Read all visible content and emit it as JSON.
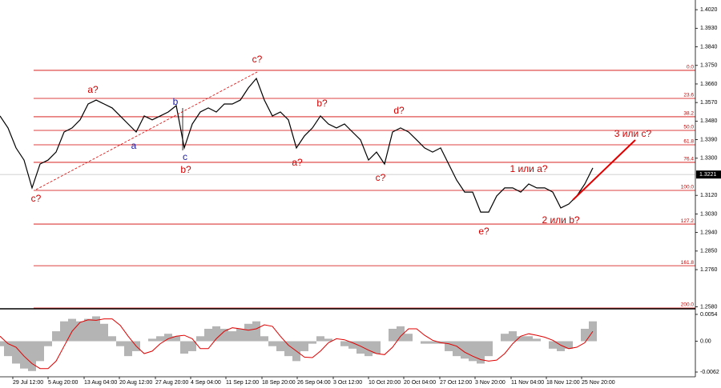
{
  "chart_data": [
    {
      "type": "line",
      "series": [
        {
          "color": "#000000",
          "values": [
            1.3505,
            1.3447,
            1.335,
            1.3291,
            1.3156,
            1.3272,
            1.3291,
            1.333,
            1.3427,
            1.3447,
            1.3486,
            1.3563,
            1.3582,
            1.3563,
            1.3544,
            1.3505,
            1.3466,
            1.3427,
            1.3505,
            1.3486,
            1.3505,
            1.3524,
            1.3555,
            1.335,
            1.3466,
            1.3524,
            1.3544,
            1.3524,
            1.3563,
            1.3563,
            1.3582,
            1.3641,
            1.3687,
            1.3582,
            1.3505,
            1.3524,
            1.3486,
            1.335,
            1.3408,
            1.3447,
            1.3505,
            1.3466,
            1.3447,
            1.3466,
            1.3427,
            1.3389,
            1.3291,
            1.333,
            1.3272,
            1.3427,
            1.3447,
            1.3427,
            1.3389,
            1.335,
            1.333,
            1.335,
            1.3272,
            1.3194,
            1.3136,
            1.3136,
            1.3039,
            1.3039,
            1.3117,
            1.3156,
            1.3156,
            1.3136,
            1.3175,
            1.3156,
            1.3156,
            1.3136,
            1.3059,
            1.3078,
            1.3117,
            1.3175,
            1.3253
          ]
        }
      ],
      "xlim": [
        0,
        74
      ],
      "xticks": [
        {
          "value": 1.6,
          "label": "29 Jul 12:00"
        },
        {
          "value": 6.0,
          "label": "5 Aug 20:00"
        },
        {
          "value": 10.5,
          "label": "13 Aug 04:00"
        },
        {
          "value": 14.9,
          "label": "20 Aug 12:00"
        },
        {
          "value": 19.4,
          "label": "27 Aug 20:00"
        },
        {
          "value": 23.8,
          "label": "4 Sep 04:00"
        },
        {
          "value": 28.2,
          "label": "11 Sep 12:00"
        },
        {
          "value": 32.7,
          "label": "18 Sep 20:00"
        },
        {
          "value": 37.1,
          "label": "26 Sep 04:00"
        },
        {
          "value": 41.6,
          "label": "3 Oct 12:00"
        },
        {
          "value": 46.0,
          "label": "10 Oct 20:00"
        },
        {
          "value": 50.4,
          "label": "20 Oct 04:00"
        },
        {
          "value": 54.9,
          "label": "27 Oct 12:00"
        },
        {
          "value": 59.3,
          "label": "3 Nov 20:00"
        },
        {
          "value": 63.8,
          "label": "11 Nov 04:00"
        },
        {
          "value": 68.2,
          "label": "18 Nov 12:00"
        },
        {
          "value": 72.6,
          "label": "25 Nov 20:00"
        }
      ],
      "ylim": [
        1.2574,
        1.4067
      ],
      "yticks": [
        {
          "value": 1.402,
          "label": "1.4020"
        },
        {
          "value": 1.393,
          "label": "1.3930"
        },
        {
          "value": 1.384,
          "label": "1.3840"
        },
        {
          "value": 1.375,
          "label": "1.3750"
        },
        {
          "value": 1.366,
          "label": "1.3660"
        },
        {
          "value": 1.357,
          "label": "1.3570"
        },
        {
          "value": 1.348,
          "label": "1.3480"
        },
        {
          "value": 1.339,
          "label": "1.3390"
        },
        {
          "value": 1.33,
          "label": "1.3300"
        },
        {
          "value": 1.312,
          "label": "1.3120"
        },
        {
          "value": 1.303,
          "label": "1.3030"
        },
        {
          "value": 1.294,
          "label": "1.2940"
        },
        {
          "value": 1.285,
          "label": "1.2850"
        },
        {
          "value": 1.276,
          "label": "1.2760"
        },
        {
          "value": 1.258,
          "label": "1.2580"
        }
      ],
      "current_price": 1.3221,
      "levels": [
        {
          "label": "0.0",
          "value": 1.3726
        },
        {
          "label": "23.6",
          "value": 1.359
        },
        {
          "label": "38.2",
          "value": 1.3501
        },
        {
          "label": "50.0",
          "value": 1.3435
        },
        {
          "label": "61.8",
          "value": 1.3365
        },
        {
          "label": "76.4",
          "value": 1.328
        },
        {
          "label": "100.0",
          "value": 1.3144
        },
        {
          "label": "127.2",
          "value": 1.2981
        },
        {
          "label": "161.8",
          "value": 1.2779
        },
        {
          "label": "200.0",
          "value": 1.2574
        }
      ],
      "level_color": "#d00000",
      "annotations": [
        {
          "text": "c?",
          "color": "#d40000"
        },
        {
          "text": "a?",
          "color": "#d40000"
        },
        {
          "text": "a",
          "color": "#1a1aa0"
        },
        {
          "text": "b",
          "color": "#1a1aa0"
        },
        {
          "text": "c",
          "color": "#1a1aa0"
        },
        {
          "text": "b?",
          "color": "#d40000"
        },
        {
          "text": "c?",
          "color": "#d40000"
        },
        {
          "text": "a?",
          "color": "#d40000"
        },
        {
          "text": "b?",
          "color": "#d40000"
        },
        {
          "text": "c?",
          "color": "#d40000"
        },
        {
          "text": "d?",
          "color": "#d40000"
        },
        {
          "text": "e?",
          "color": "#d40000"
        },
        {
          "text": "1 или a?",
          "color": "#d40000"
        },
        {
          "text": "2 или b?",
          "color": "#d40000"
        },
        {
          "text": "3 или c?",
          "color": "#d40000"
        }
      ]
    },
    {
      "type": "oscillator",
      "series": [
        {
          "type": "bar",
          "color": "#b4b4b4",
          "values": [
            -0.001,
            -0.003,
            -0.0045,
            -0.0055,
            -0.006,
            -0.004,
            -0.001,
            0.002,
            0.004,
            0.0045,
            0.004,
            0.0045,
            0.005,
            0.0035,
            0.001,
            -0.001,
            -0.003,
            -0.002,
            0.0,
            0.0005,
            0.001,
            0.0015,
            0.001,
            -0.0025,
            -0.002,
            0.001,
            0.0025,
            0.003,
            0.0025,
            0.002,
            0.0025,
            0.0035,
            0.004,
            0.001,
            -0.001,
            -0.002,
            -0.003,
            -0.004,
            -0.002,
            -0.0005,
            0.001,
            0.0005,
            0.0,
            -0.001,
            -0.0015,
            -0.0025,
            -0.003,
            -0.0025,
            0.0,
            0.0025,
            0.003,
            0.0015,
            0.0,
            -0.0005,
            -0.0005,
            -0.0005,
            -0.002,
            -0.003,
            -0.0035,
            -0.004,
            -0.0045,
            -0.003,
            0.0,
            0.0015,
            0.002,
            0.001,
            0.001,
            0.0005,
            0.0,
            -0.0015,
            -0.002,
            -0.0015,
            0.0,
            0.0025,
            0.004
          ]
        },
        {
          "type": "line",
          "color": "#e00000",
          "values": [
            0.001,
            -0.0005,
            -0.0012,
            -0.003,
            -0.0045,
            -0.0055,
            -0.0055,
            -0.004,
            -0.001,
            0.002,
            0.0038,
            0.0043,
            0.0042,
            0.0045,
            0.0045,
            0.0032,
            0.001,
            -0.001,
            -0.0025,
            -0.002,
            -0.0005,
            0.0005,
            0.001,
            0.0012,
            0.0005,
            -0.0015,
            -0.0015,
            0.0005,
            0.002,
            0.0027,
            0.0025,
            0.0022,
            0.0025,
            0.0033,
            0.003,
            0.001,
            -0.0008,
            -0.002,
            -0.0032,
            -0.0033,
            -0.002,
            -0.0003,
            0.0005,
            0.0003,
            -0.0003,
            -0.001,
            -0.0018,
            -0.0025,
            -0.0027,
            -0.0012,
            0.001,
            0.0025,
            0.0025,
            0.0012,
            0.0002,
            -0.0003,
            -0.0005,
            -0.001,
            -0.0022,
            -0.003,
            -0.0037,
            -0.004,
            -0.0038,
            -0.0025,
            -0.0005,
            0.001,
            0.0015,
            0.0012,
            0.0008,
            0.0002,
            -0.0008,
            -0.0015,
            -0.0012,
            -0.0003,
            0.002
          ]
        }
      ],
      "xlim": [
        0,
        74
      ],
      "ylim": [
        -0.007,
        0.0062
      ],
      "yticks": [
        0.0054,
        {
          "value": 0,
          "label": "0.00"
        },
        -0.0062
      ]
    }
  ]
}
